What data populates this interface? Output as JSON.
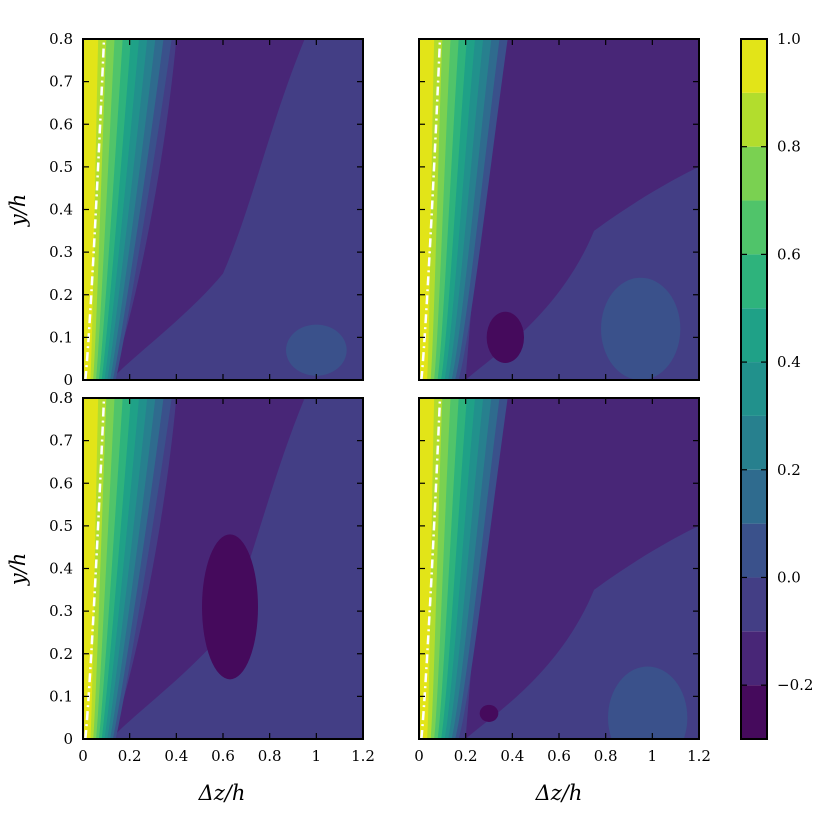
{
  "chart_data": {
    "type": "contour",
    "layout": "2x2 grid of contour panels with shared colorbar on the right",
    "xlabel": "Δz/h",
    "ylabel": "y/h",
    "xlim": [
      0,
      1.2
    ],
    "ylim": [
      0,
      0.8
    ],
    "x_ticks": [
      "0",
      "0.2",
      "0.4",
      "0.6",
      "0.8",
      "1",
      "1.2"
    ],
    "y_ticks": [
      "0",
      "0.1",
      "0.2",
      "0.3",
      "0.4",
      "0.5",
      "0.6",
      "0.7",
      "0.8"
    ],
    "colorbar": {
      "range": [
        -0.3,
        1.0
      ],
      "levels": [
        -0.3,
        -0.2,
        -0.1,
        0.0,
        0.1,
        0.2,
        0.3,
        0.4,
        0.5,
        0.6,
        0.7,
        0.8,
        0.9,
        1.0
      ],
      "tick_values": [
        -0.2,
        0.0,
        0.2,
        0.4,
        0.6,
        0.8,
        1.0
      ],
      "tick_labels": [
        "−0.2",
        "0.0",
        "0.2",
        "0.4",
        "0.6",
        "0.8",
        "1.0"
      ],
      "colors": [
        "#450a5c",
        "#482677",
        "#433e85",
        "#3a518b",
        "#2f6b8e",
        "#27808e",
        "#21918c",
        "#1fa187",
        "#2eb37c",
        "#50c46a",
        "#7ad151",
        "#b2dd2d",
        "#e2e418"
      ]
    },
    "colormap": "viridis",
    "reference_line": {
      "style": "white dash-dot",
      "description": "near-wall contour line close to Δz/h = 0"
    },
    "panels": [
      {
        "position": "top-left",
        "show_ylabel": true,
        "show_xlabel": false,
        "minima": [],
        "secondary_feature": {
          "x": 1.0,
          "y": 0.07,
          "value_level": 0.0
        }
      },
      {
        "position": "top-right",
        "show_ylabel": false,
        "show_xlabel": false,
        "minima": [
          {
            "x": 0.37,
            "y": 0.1,
            "level": -0.2
          }
        ],
        "secondary_feature": {
          "x": 0.95,
          "y": 0.12,
          "value_level": 0.0
        }
      },
      {
        "position": "bottom-left",
        "show_ylabel": true,
        "show_xlabel": true,
        "minima": [
          {
            "x": 0.63,
            "y": 0.31,
            "level": -0.2
          }
        ],
        "secondary_feature": null
      },
      {
        "position": "bottom-right",
        "show_ylabel": false,
        "show_xlabel": true,
        "minima": [
          {
            "x": 0.3,
            "y": 0.06,
            "level": -0.2
          }
        ],
        "secondary_feature": {
          "x": 0.98,
          "y": 0.05,
          "value_level": 0.0
        }
      }
    ]
  }
}
